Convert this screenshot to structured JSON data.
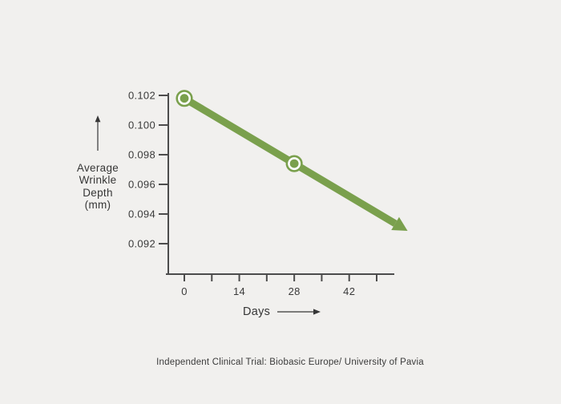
{
  "page": {
    "background": "#f1f0ee",
    "caption": "Independent Clinical Trial: Biobasic Europe/ University of Pavia"
  },
  "chart_data": {
    "type": "line",
    "title": "",
    "xlabel": "Days",
    "ylabel": "Average Wrinkle Depth (mm)",
    "ylabel_lines": "Average\nWrinkle\nDepth\n(mm)",
    "grid": false,
    "legend": false,
    "xlim": [
      0,
      53.5
    ],
    "ylim": [
      0.0899,
      0.1022
    ],
    "x_ticks": [
      0,
      7,
      14,
      21,
      28,
      35,
      42,
      49
    ],
    "x_tick_labels": [
      {
        "label": "0",
        "value": 0
      },
      {
        "label": "14",
        "value": 14
      },
      {
        "label": "28",
        "value": 28
      },
      {
        "label": "42",
        "value": 42
      }
    ],
    "y_ticks": [
      {
        "label": "0.102",
        "value": 0.102
      },
      {
        "label": "0.100",
        "value": 0.1
      },
      {
        "label": "0.098",
        "value": 0.098
      },
      {
        "label": "0.096",
        "value": 0.096
      },
      {
        "label": "0.094",
        "value": 0.094
      },
      {
        "label": "0.092",
        "value": 0.092
      }
    ],
    "series": [
      {
        "name": "average-wrinkle-depth",
        "color": "#7aa04d",
        "points": [
          {
            "day": 0,
            "value": 0.1018
          },
          {
            "day": 28,
            "value": 0.0974
          }
        ],
        "trend_arrow_end": {
          "day": 56,
          "value": 0.093
        }
      }
    ],
    "colors": {
      "line": "#7aa04d",
      "marker_fill": "#7aa04d",
      "marker_ring": "#ffffff",
      "axis": "#4c4c4c",
      "text": "#3a3a3a"
    }
  }
}
